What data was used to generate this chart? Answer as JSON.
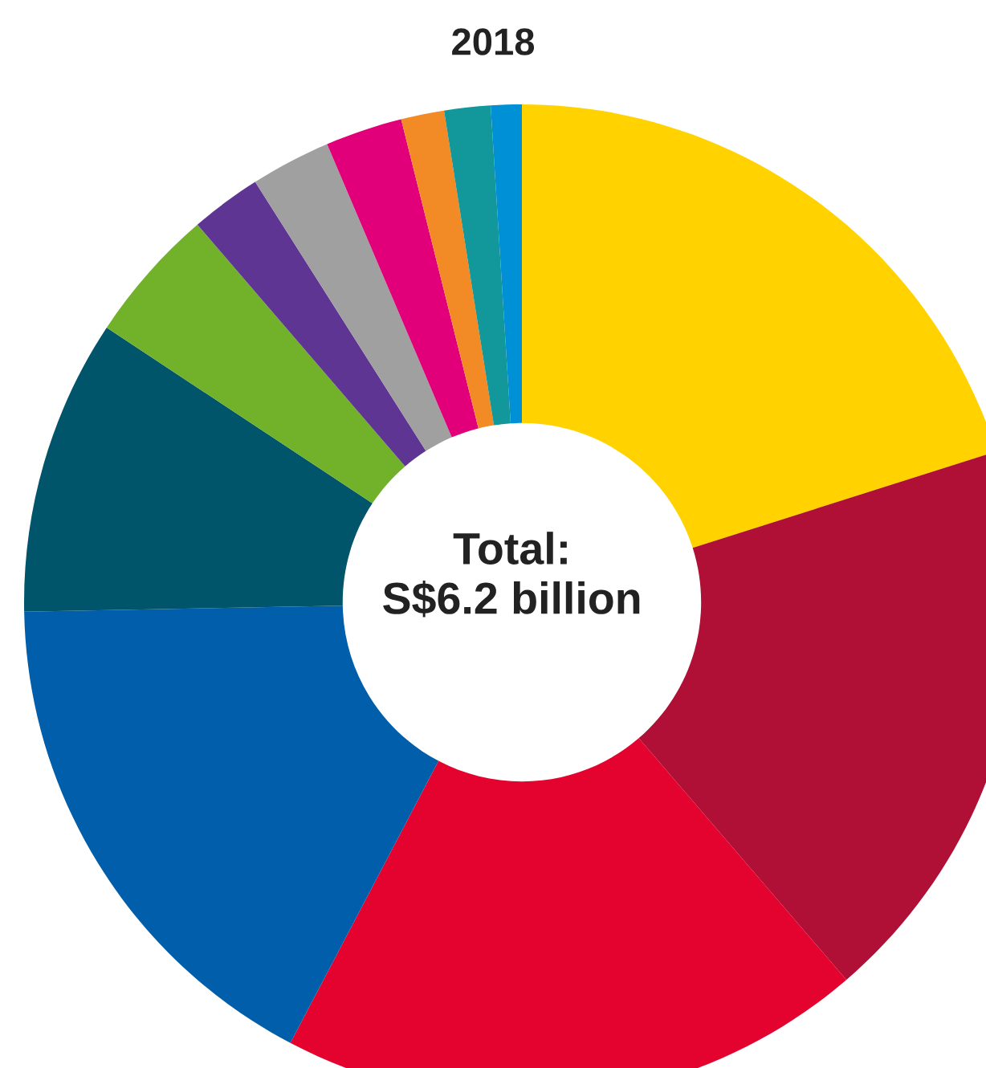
{
  "chart_data": {
    "type": "donut",
    "title": "2018",
    "annotations": [
      "Total:\nS$6.2 billion"
    ],
    "categories": [
      null,
      null,
      null,
      null,
      null,
      null,
      null,
      null,
      null,
      null,
      null,
      null
    ],
    "values": [
      20.1,
      18.6,
      19,
      17,
      9.6,
      4.4,
      2.3,
      2.6,
      2.5,
      1.4,
      1.5,
      1
    ],
    "colors": [
      "#ffd200",
      "#b01035",
      "#e4032e",
      "#005eaa",
      "#01556b",
      "#72b22a",
      "#5e3592",
      "#a0a0a0",
      "#e2007a",
      "#f28a25",
      "#12989a",
      "#0090d6"
    ]
  }
}
